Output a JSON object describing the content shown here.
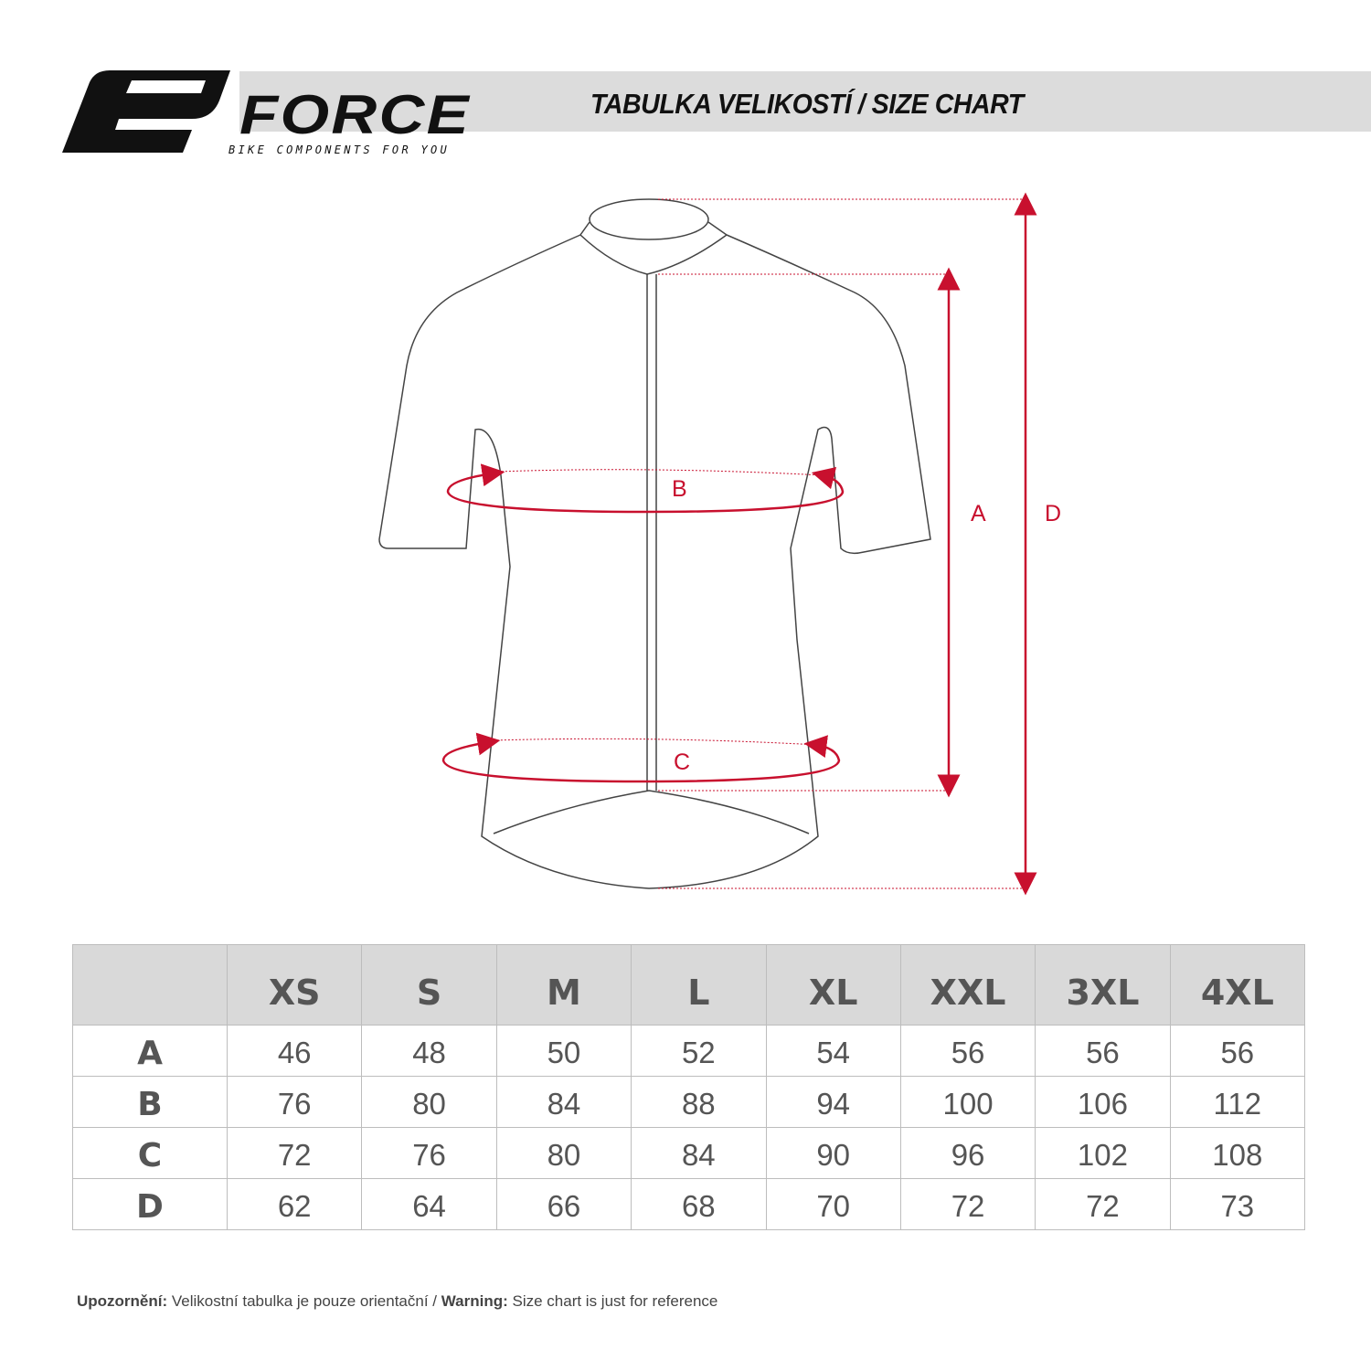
{
  "brand": {
    "name": "FORCE",
    "tagline": "BIKE COMPONENTS FOR YOU"
  },
  "title": "TABULKA VELIKOSTÍ / SIZE CHART",
  "diagram": {
    "labels": {
      "A": "A",
      "B": "B",
      "C": "C",
      "D": "D"
    },
    "accent_color": "#c8102e"
  },
  "table": {
    "headers": [
      "",
      "XS",
      "S",
      "M",
      "L",
      "XL",
      "XXL",
      "3XL",
      "4XL"
    ],
    "rows": [
      {
        "label": "A",
        "values": [
          "46",
          "48",
          "50",
          "52",
          "54",
          "56",
          "56",
          "56"
        ]
      },
      {
        "label": "B",
        "values": [
          "76",
          "80",
          "84",
          "88",
          "94",
          "100",
          "106",
          "112"
        ]
      },
      {
        "label": "C",
        "values": [
          "72",
          "76",
          "80",
          "84",
          "90",
          "96",
          "102",
          "108"
        ]
      },
      {
        "label": "D",
        "values": [
          "62",
          "64",
          "66",
          "68",
          "70",
          "72",
          "72",
          "73"
        ]
      }
    ]
  },
  "note": {
    "cz_label": "Upozornění:",
    "cz_text": " Velikostní tabulka je pouze orientační / ",
    "en_label": "Warning:",
    "en_text": " Size chart is just for reference"
  }
}
